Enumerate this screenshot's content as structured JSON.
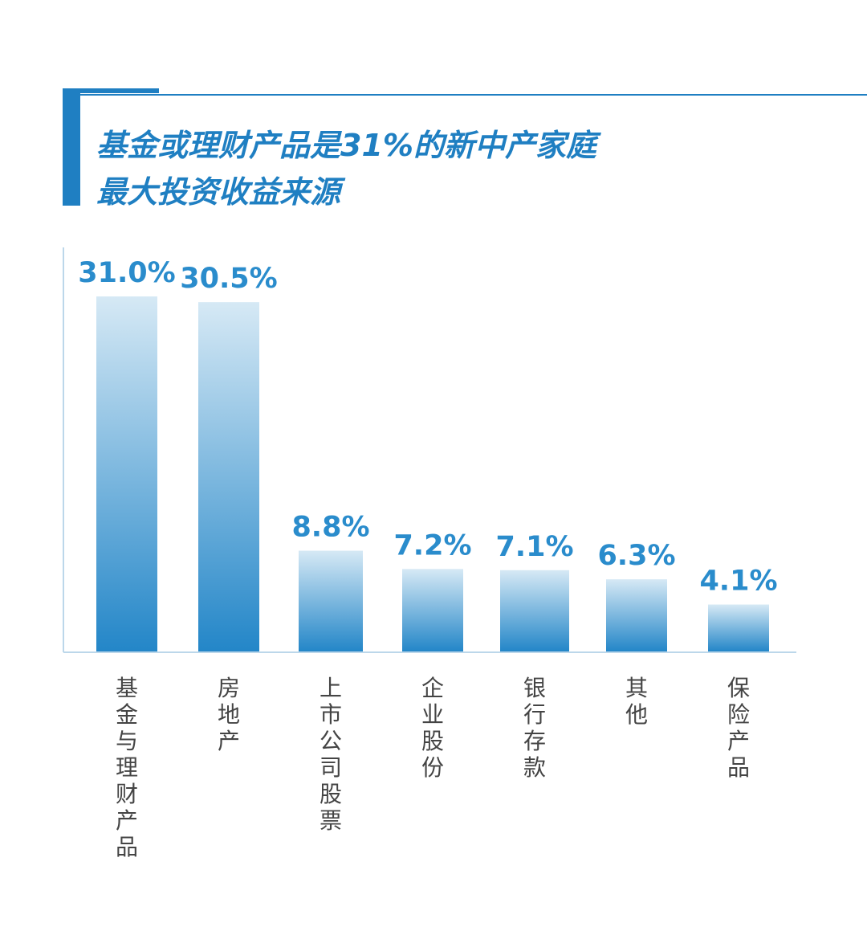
{
  "title": {
    "line1": "基金或理财产品是31%的新中产家庭",
    "line2": "最大投资收益来源"
  },
  "colors": {
    "accent": "#1f7fc2",
    "bar_top": "#d6e9f5",
    "bar_bottom": "#2386c8",
    "value_text": "#2a8ccc",
    "category_text": "#444444",
    "axis": "#bcd7ea"
  },
  "chart_data": {
    "type": "bar",
    "categories": [
      "基金与理财产品",
      "房地产",
      "上市公司股票",
      "企业股份",
      "银行存款",
      "其他",
      "保险产品"
    ],
    "values": [
      31.0,
      30.5,
      8.8,
      7.2,
      7.1,
      6.3,
      4.1
    ],
    "value_labels": [
      "31.0%",
      "30.5%",
      "8.8%",
      "7.2%",
      "7.1%",
      "6.3%",
      "4.1%"
    ],
    "ylim": [
      0,
      31
    ],
    "grid": false,
    "legend": "none"
  }
}
